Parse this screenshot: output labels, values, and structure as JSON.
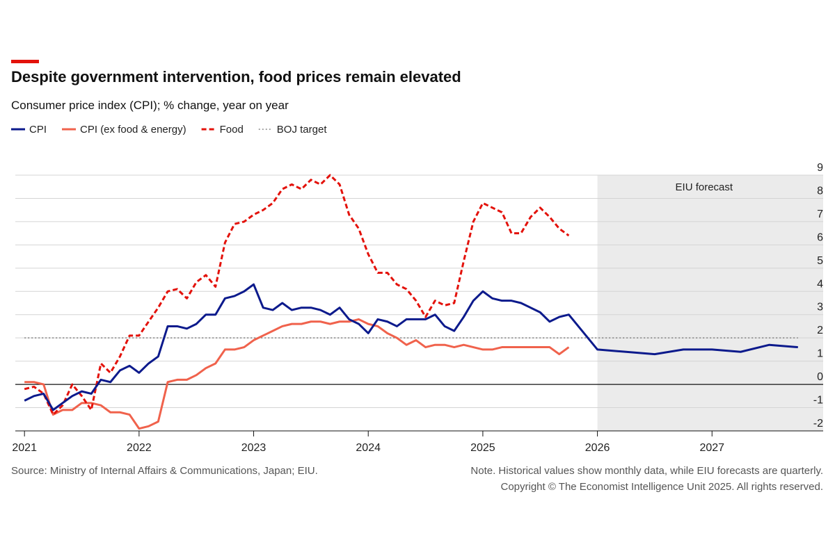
{
  "chart_data": {
    "type": "line",
    "title": "Despite government intervention, food prices remain elevated",
    "subtitle": "Consumer price index (CPI); % change, year on year",
    "source": "Source: Ministry of Internal Affairs & Communications, Japan; EIU.",
    "note": [
      "Note. Historical values show monthly data, while EIU forecasts are quarterly.",
      "Copyright © The Economist Intelligence Unit 2025. All rights reserved."
    ],
    "forecast": {
      "label": "EIU forecast",
      "start": 2026
    },
    "xlim": [
      2020.92,
      2027.97
    ],
    "xticks": [
      2021,
      2022,
      2023,
      2024,
      2025,
      2026,
      2027
    ],
    "ylim": [
      -2,
      9
    ],
    "yticks": [
      -2,
      -1,
      0,
      1,
      2,
      3,
      4,
      5,
      6,
      7,
      8,
      9
    ],
    "grid": true,
    "series": [
      {
        "name": "CPI",
        "color": "#0c1a8c",
        "dash": "none",
        "x": [
          2021,
          2021.083,
          2021.167,
          2021.25,
          2021.333,
          2021.417,
          2021.5,
          2021.583,
          2021.667,
          2021.75,
          2021.833,
          2021.917,
          2022,
          2022.083,
          2022.167,
          2022.25,
          2022.333,
          2022.417,
          2022.5,
          2022.583,
          2022.667,
          2022.75,
          2022.833,
          2022.917,
          2023,
          2023.083,
          2023.167,
          2023.25,
          2023.333,
          2023.417,
          2023.5,
          2023.583,
          2023.667,
          2023.75,
          2023.833,
          2023.917,
          2024,
          2024.083,
          2024.167,
          2024.25,
          2024.333,
          2024.417,
          2024.5,
          2024.583,
          2024.667,
          2024.75,
          2024.833,
          2024.917,
          2025,
          2025.083,
          2025.167,
          2025.25,
          2025.333,
          2025.417,
          2025.5,
          2025.583,
          2025.667,
          2025.75,
          2026,
          2026.25,
          2026.5,
          2026.75,
          2027,
          2027.25,
          2027.5,
          2027.75
        ],
        "values": [
          -0.7,
          -0.5,
          -0.4,
          -1.1,
          -0.8,
          -0.5,
          -0.3,
          -0.4,
          0.2,
          0.1,
          0.6,
          0.8,
          0.5,
          0.9,
          1.2,
          2.5,
          2.5,
          2.4,
          2.6,
          3.0,
          3.0,
          3.7,
          3.8,
          4.0,
          4.3,
          3.3,
          3.2,
          3.5,
          3.2,
          3.3,
          3.3,
          3.2,
          3.0,
          3.3,
          2.8,
          2.6,
          2.2,
          2.8,
          2.7,
          2.5,
          2.8,
          2.8,
          2.8,
          3.0,
          2.5,
          2.3,
          2.9,
          3.6,
          4.0,
          3.7,
          3.6,
          3.6,
          3.5,
          3.3,
          3.1,
          2.7,
          2.9,
          3.0,
          1.5,
          1.4,
          1.3,
          1.5,
          1.5,
          1.4,
          1.7,
          1.6
        ]
      },
      {
        "name": "CPI (ex food & energy)",
        "color": "#f0624c",
        "dash": "none",
        "x": [
          2021,
          2021.083,
          2021.167,
          2021.25,
          2021.333,
          2021.417,
          2021.5,
          2021.583,
          2021.667,
          2021.75,
          2021.833,
          2021.917,
          2022,
          2022.083,
          2022.167,
          2022.25,
          2022.333,
          2022.417,
          2022.5,
          2022.583,
          2022.667,
          2022.75,
          2022.833,
          2022.917,
          2023,
          2023.083,
          2023.167,
          2023.25,
          2023.333,
          2023.417,
          2023.5,
          2023.583,
          2023.667,
          2023.75,
          2023.833,
          2023.917,
          2024,
          2024.083,
          2024.167,
          2024.25,
          2024.333,
          2024.417,
          2024.5,
          2024.583,
          2024.667,
          2024.75,
          2024.833,
          2024.917,
          2025,
          2025.083,
          2025.167,
          2025.25,
          2025.333,
          2025.417,
          2025.5,
          2025.583,
          2025.667,
          2025.75
        ],
        "values": [
          0.1,
          0.1,
          0.0,
          -1.3,
          -1.1,
          -1.1,
          -0.8,
          -0.8,
          -0.9,
          -1.2,
          -1.2,
          -1.3,
          -1.9,
          -1.8,
          -1.6,
          0.1,
          0.2,
          0.2,
          0.4,
          0.7,
          0.9,
          1.5,
          1.5,
          1.6,
          1.9,
          2.1,
          2.3,
          2.5,
          2.6,
          2.6,
          2.7,
          2.7,
          2.6,
          2.7,
          2.7,
          2.8,
          2.6,
          2.5,
          2.2,
          2.0,
          1.7,
          1.9,
          1.6,
          1.7,
          1.7,
          1.6,
          1.7,
          1.6,
          1.5,
          1.5,
          1.6,
          1.6,
          1.6,
          1.6,
          1.6,
          1.6,
          1.3,
          1.6
        ]
      },
      {
        "name": "Food",
        "color": "#e3120b",
        "dash": "7 4",
        "x": [
          2021,
          2021.083,
          2021.167,
          2021.25,
          2021.333,
          2021.417,
          2021.5,
          2021.583,
          2021.667,
          2021.75,
          2021.833,
          2021.917,
          2022,
          2022.083,
          2022.167,
          2022.25,
          2022.333,
          2022.417,
          2022.5,
          2022.583,
          2022.667,
          2022.75,
          2022.833,
          2022.917,
          2023,
          2023.083,
          2023.167,
          2023.25,
          2023.333,
          2023.417,
          2023.5,
          2023.583,
          2023.667,
          2023.75,
          2023.833,
          2023.917,
          2024,
          2024.083,
          2024.167,
          2024.25,
          2024.333,
          2024.417,
          2024.5,
          2024.583,
          2024.667,
          2024.75,
          2024.833,
          2024.917,
          2025,
          2025.083,
          2025.167,
          2025.25,
          2025.333,
          2025.417,
          2025.5,
          2025.583,
          2025.667,
          2025.75
        ],
        "values": [
          -0.2,
          -0.1,
          -0.4,
          -1.3,
          -0.9,
          0.0,
          -0.5,
          -1.1,
          0.9,
          0.5,
          1.2,
          2.1,
          2.1,
          2.7,
          3.3,
          4.0,
          4.1,
          3.7,
          4.4,
          4.7,
          4.2,
          6.1,
          6.9,
          7.0,
          7.3,
          7.5,
          7.8,
          8.4,
          8.6,
          8.4,
          8.8,
          8.6,
          9.0,
          8.6,
          7.3,
          6.7,
          5.6,
          4.8,
          4.8,
          4.3,
          4.1,
          3.6,
          2.9,
          3.6,
          3.4,
          3.5,
          5.3,
          7.0,
          7.8,
          7.6,
          7.4,
          6.5,
          6.5,
          7.2,
          7.6,
          7.2,
          6.7,
          6.4
        ]
      },
      {
        "name": "BOJ target",
        "color": "#888888",
        "dash": "2 3",
        "x": [
          2021,
          2027.75
        ],
        "values": [
          2,
          2
        ]
      }
    ]
  }
}
